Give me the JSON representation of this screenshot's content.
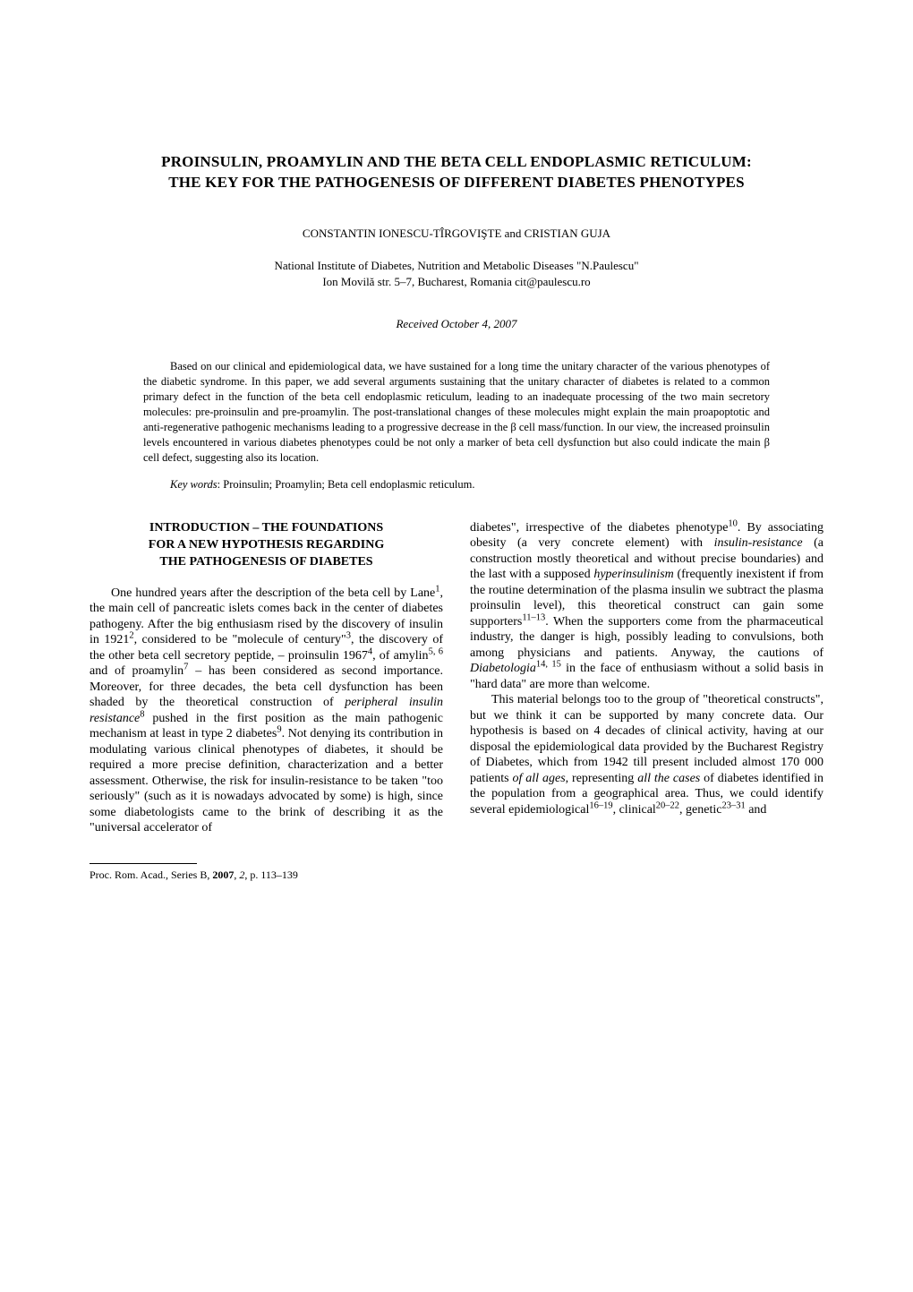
{
  "title_line1": "PROINSULIN, PROAMYLIN AND THE BETA CELL ENDOPLASMIC RETICULUM:",
  "title_line2": "THE KEY FOR THE PATHOGENESIS OF DIFFERENT DIABETES PHENOTYPES",
  "authors": "CONSTANTIN IONESCU-TÎRGOVIŞTE and CRISTIAN GUJA",
  "affiliation_line1": "National Institute of Diabetes, Nutrition and Metabolic Diseases \"N.Paulescu\"",
  "affiliation_line2": "Ion Movilă str. 5–7, Bucharest, Romania cit@paulescu.ro",
  "received": "Received October 4, 2007",
  "abstract": "Based on our clinical and epidemiological data, we have sustained for a long time the unitary character of the various phenotypes of the diabetic syndrome. In this paper, we add several arguments sustaining that the unitary character of diabetes is related to a common primary defect in the function of the beta cell endoplasmic reticulum, leading to an inadequate processing of the two main secretory molecules: pre-proinsulin and pre-proamylin. The post-translational changes of these molecules might explain the main proapoptotic and anti-regenerative pathogenic mechanisms leading to a progressive decrease in the β cell mass/function. In our view, the increased proinsulin levels encountered in various diabetes phenotypes could be not only a marker of beta cell dysfunction but also could indicate the main β cell defect, suggesting also its location.",
  "keywords_label": "Key words",
  "keywords_text": ": Proinsulin; Proamylin; Beta cell endoplasmic reticulum.",
  "section_heading_line1": "INTRODUCTION – THE FOUNDATIONS",
  "section_heading_line2": "FOR A NEW HYPOTHESIS REGARDING",
  "section_heading_line3": "THE PATHOGENESIS OF DIABETES",
  "body_col1_html": "One hundred years after the description of the beta cell by Lane<sup>1</sup>, the main cell of pancreatic islets comes back in the center of diabetes pathogeny. After the big enthusiasm rised by the discovery of insulin in 1921<sup>2</sup>, considered to be \"molecule of century\"<sup>3</sup>, the discovery of the other beta cell secretory peptide, – proinsulin 1967<sup>4</sup>, of amylin<sup>5, 6</sup> and of proamylin<sup>7</sup> – has been considered as second importance. Moreover, for three decades, the beta cell dysfunction has been shaded by the theoretical construction of <i>peripheral insulin resistance</i><sup>8</sup> pushed in the first position as the main pathogenic mechanism at least in type 2 diabetes<sup>9</sup>. Not denying its contribution in modulating various clinical phenotypes of diabetes, it should be required a more precise definition, characterization and a better assessment. Otherwise, the risk for insulin-resistance to be taken \"too seriously\" (such as it is nowadays advocated by some) is high, since some diabetologists came to the brink of describing it as the \"universal accelerator of",
  "body_col2_p1_html": "diabetes\", irrespective of the diabetes phenotype<sup>10</sup>. By associating obesity (a very concrete element) with <i>insulin-resistance</i> (a construction mostly theoretical and without precise boundaries) and the last with a supposed <i>hyperinsulinism</i> (frequently inexistent if from the routine determination of the plasma insulin we subtract the plasma proinsulin level), this theoretical construct can gain some supporters<sup>11–13</sup>. When the supporters come from the pharmaceutical industry, the danger is high, possibly leading to convulsions, both among physicians and patients. Anyway, the cautions of <i>Diabetologia</i><sup>14, 15</sup> in the face of enthusiasm without a solid basis in \"hard data\" are more than welcome.",
  "body_col2_p2_html": "This material belongs too to the group of \"theoretical constructs\", but we think it can be supported by many concrete data. Our hypothesis is based on 4 decades of clinical activity, having at our disposal the epidemiological data provided by the Bucharest Registry of Diabetes, which from 1942 till present included almost 170 000 patients <i>of all ages</i>, representing <i>all the cases</i> of diabetes identified in the population from a geographical area. Thus, we could identify several epidemiological<sup>16–19</sup>, clinical<sup>20–22</sup>, genetic<sup>23–31</sup> and",
  "footer_citation_html": "Proc. Rom. Acad., Series B, <b>2007</b>, <i>2</i>, p. 113–139"
}
